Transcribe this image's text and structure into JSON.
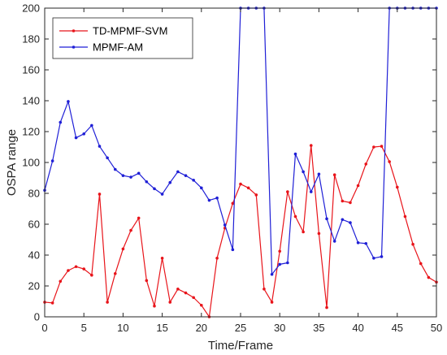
{
  "chart_data": {
    "type": "line",
    "title": "",
    "xlabel": "Time/Frame",
    "ylabel": "OSPA range",
    "xlim": [
      0,
      50
    ],
    "ylim": [
      0,
      200
    ],
    "xticks": [
      0,
      5,
      10,
      15,
      20,
      25,
      30,
      35,
      40,
      45,
      50
    ],
    "yticks": [
      0,
      20,
      40,
      60,
      80,
      100,
      120,
      140,
      160,
      180,
      200
    ],
    "grid": false,
    "legend_position": "top-left",
    "x": [
      0,
      1,
      2,
      3,
      4,
      5,
      6,
      7,
      8,
      9,
      10,
      11,
      12,
      13,
      14,
      15,
      16,
      17,
      18,
      19,
      20,
      21,
      22,
      23,
      24,
      25,
      26,
      27,
      28,
      29,
      30,
      31,
      32,
      33,
      34,
      35,
      36,
      37,
      38,
      39,
      40,
      41,
      42,
      43,
      44,
      45,
      46,
      47,
      48,
      49,
      50
    ],
    "series": [
      {
        "name": "TD-MPMF-SVM",
        "color": "#e8141a",
        "values": [
          9.5,
          9.0,
          23.0,
          30.0,
          32.5,
          31.0,
          27.0,
          79.5,
          9.5,
          28.0,
          44.0,
          56.0,
          64.0,
          23.5,
          7.0,
          38.0,
          9.5,
          18.0,
          15.5,
          12.5,
          7.5,
          0.0,
          38.0,
          57.5,
          73.5,
          86.0,
          83.5,
          79.0,
          18.0,
          9.5,
          42.5,
          81.0,
          65.0,
          55.0,
          111.0,
          54.0,
          6.0,
          92.0,
          75.0,
          74.0,
          85.0,
          99.0,
          110.0,
          110.5,
          100.5,
          84.0,
          65.0,
          47.0,
          34.5,
          25.5,
          22.5
        ]
      },
      {
        "name": "MPMF-AM",
        "color": "#1f1fd6",
        "values": [
          82.0,
          101.0,
          126.0,
          139.5,
          116.0,
          118.5,
          124.0,
          110.5,
          103.0,
          95.5,
          91.5,
          90.5,
          93.0,
          87.5,
          83.0,
          79.5,
          87.0,
          94.0,
          91.5,
          88.5,
          83.5,
          75.5,
          77.0,
          59.5,
          43.5,
          200.0,
          200.0,
          200.0,
          200.0,
          27.5,
          34.0,
          35.0,
          105.5,
          94.0,
          81.0,
          92.5,
          63.5,
          49.0,
          63.0,
          61.0,
          48.0,
          47.5,
          38.0,
          39.0,
          200.0,
          200.0,
          200.0,
          200.0,
          200.0,
          200.0,
          200.0
        ]
      }
    ]
  }
}
